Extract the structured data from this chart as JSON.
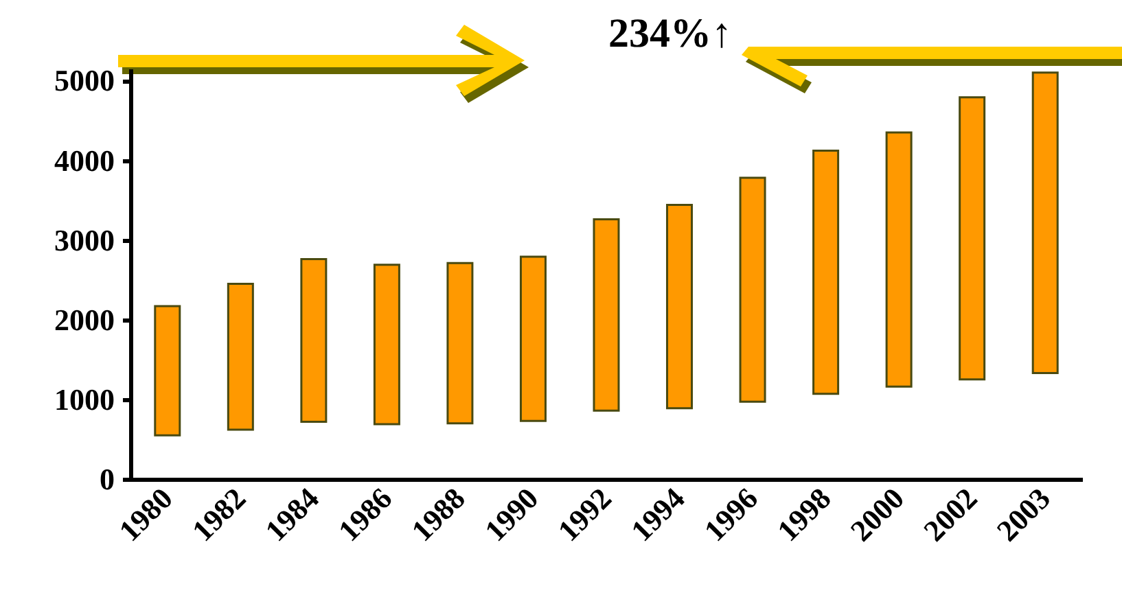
{
  "chart_data": {
    "type": "bar",
    "categories": [
      "1980",
      "1982",
      "1984",
      "1986",
      "1988",
      "1990",
      "1992",
      "1994",
      "1996",
      "1998",
      "2000",
      "2002",
      "2003"
    ],
    "base": [
      550,
      620,
      720,
      690,
      700,
      730,
      860,
      890,
      970,
      1070,
      1160,
      1250,
      1330
    ],
    "values": [
      1620,
      1830,
      2040,
      2000,
      2010,
      2060,
      2400,
      2550,
      2810,
      3050,
      3190,
      3540,
      3770
    ],
    "color": "#ff9900",
    "ylim": [
      0,
      5150
    ],
    "yticks": [
      0,
      1000,
      2000,
      3000,
      4000,
      5000
    ],
    "annotations": [
      "234%↑"
    ]
  }
}
